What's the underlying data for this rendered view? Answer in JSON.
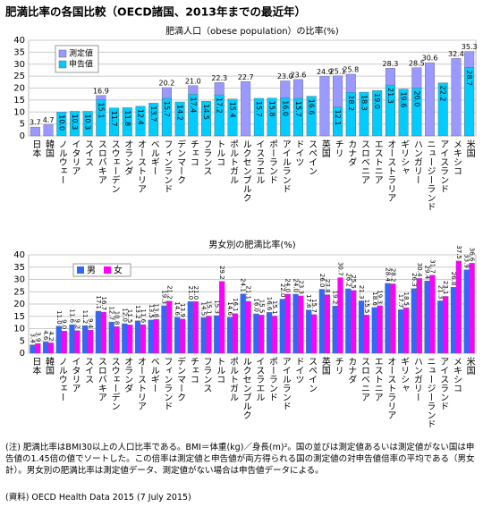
{
  "title": "肥満比率の各国比較（OECD諸国、2013年までの最近年）",
  "chart_data": [
    {
      "type": "bar",
      "bar_mode": "overlay",
      "title": "肥満人口（obese population）の比率(%)",
      "categories": [
        "日本",
        "韓国",
        "ノルウェー",
        "イタリア",
        "スイス",
        "スロバキア",
        "スウェーデン",
        "オランダ",
        "オーストリア",
        "ベルギー",
        "フィンランド",
        "デンマーク",
        "チェコ",
        "フランス",
        "トルコ",
        "ポルトガル",
        "ルクセンブルク",
        "イスラエル",
        "ポーランド",
        "アイルランド",
        "ドイツ",
        "スペイン",
        "英国",
        "チリ",
        "カナダ",
        "スロベニア",
        "エストニア",
        "オーストラリア",
        "ギリシャ",
        "ハンガリー",
        "ニュージーランド",
        "アイスランド",
        "メキシコ",
        "米国"
      ],
      "series": [
        {
          "name": "測定値",
          "color": "#9999ff",
          "values": [
            3.7,
            4.7,
            null,
            null,
            null,
            16.9,
            null,
            null,
            null,
            null,
            20.2,
            null,
            21.0,
            null,
            22.3,
            null,
            22.7,
            null,
            null,
            23.0,
            23.6,
            null,
            24.9,
            25.1,
            25.8,
            null,
            null,
            28.3,
            null,
            28.5,
            30.6,
            null,
            32.4,
            35.3
          ],
          "value_labels": [
            "3.7",
            "4.7",
            null,
            null,
            null,
            "16.9",
            null,
            null,
            null,
            null,
            "20.2",
            null,
            "21.0",
            null,
            "22.3",
            null,
            "22.7",
            null,
            null,
            "23.0",
            "23.6",
            null,
            "24.9",
            "25.1",
            "25.8",
            null,
            null,
            "28.3",
            null,
            "28.5",
            "30.6",
            null,
            "32.4",
            "35.3"
          ]
        },
        {
          "name": "申告値",
          "color": "#00ccff",
          "values": [
            null,
            null,
            10.0,
            10.3,
            10.3,
            15.1,
            11.7,
            11.8,
            12.4,
            13.7,
            15.7,
            14.2,
            17.4,
            14.5,
            17.2,
            15.4,
            null,
            15.7,
            15.8,
            16.0,
            15.7,
            16.6,
            null,
            12.1,
            18.2,
            18.3,
            19.0,
            21.3,
            19.6,
            20.0,
            null,
            22.2,
            null,
            28.7
          ],
          "value_labels": [
            null,
            null,
            "10.0",
            "10.3",
            "10.3",
            "15.1",
            "11.7",
            "11.8",
            "12.4",
            "13.7",
            "15.7",
            "14.2",
            "17.4",
            "14.5",
            "17.2",
            "15.4",
            null,
            "15.7",
            "15.8",
            "16.0",
            "15.7",
            "16.6",
            null,
            "12.1",
            "18.2",
            "18.3",
            "19.0",
            "21.3",
            "19.6",
            "20.0",
            null,
            "22.2",
            null,
            "28.7"
          ]
        }
      ],
      "ylim": [
        0,
        40
      ],
      "yticks": [
        0,
        5,
        10,
        15,
        20,
        25,
        30,
        35,
        40
      ],
      "grid": true,
      "legend": "upper left"
    },
    {
      "type": "bar",
      "bar_mode": "grouped",
      "title": "男女別の肥満比率(%)",
      "categories": [
        "日本",
        "韓国",
        "ノルウェー",
        "イタリア",
        "スイス",
        "スロバキア",
        "スウェーデン",
        "オランダ",
        "オーストリア",
        "ベルギー",
        "フィンランド",
        "デンマーク",
        "チェコ",
        "フランス",
        "トルコ",
        "ポルトガル",
        "ルクセンブルク",
        "イスラエル",
        "ポーランド",
        "アイルランド",
        "ドイツ",
        "スペイン",
        "英国",
        "チリ",
        "カナダ",
        "スロベニア",
        "エストニア",
        "オーストラリア",
        "ギリシャ",
        "ハンガリー",
        "ニュージーランド",
        "アイスランド",
        "メキシコ",
        "米国"
      ],
      "series": [
        {
          "name": "男",
          "color": "#3366ff",
          "values": [
            3.4,
            4.6,
            11.0,
            11.6,
            11.2,
            17.1,
            12.7,
            12.0,
            13.2,
            13.5,
            19.3,
            14.6,
            21.0,
            14.5,
            15.3,
            14.6,
            24.1,
            16.0,
            16.6,
            22.0,
            24.0,
            17.6,
            26.0,
            19.2,
            26.2,
            21.3,
            18.6,
            28.4,
            17.7,
            26.3,
            29.4,
            21.3,
            26.8,
            33.9
          ],
          "value_labels": [
            "3.4",
            "4.6",
            "11.0",
            "11.6",
            "11.2",
            "17.1",
            "12.7",
            "12.0",
            "13.2",
            "13.5",
            "19.3",
            "14.6",
            "21.0",
            "14.5",
            "15.3",
            "14.6",
            "24.1",
            "16.0",
            "16.6",
            "22.0",
            "24.0",
            "17.6",
            "26.0",
            "19.2",
            "26.2",
            "21.3",
            "18.6",
            "28.4",
            "17.7",
            "26.3",
            "29.4",
            "21.3",
            "26.8",
            "33.9"
          ]
        },
        {
          "name": "女",
          "color": "#ff00ff",
          "values": [
            3.9,
            4.2,
            9.0,
            9.2,
            9.4,
            16.7,
            10.8,
            11.5,
            11.6,
            13.8,
            21.2,
            13.9,
            21.0,
            15.1,
            29.2,
            16.1,
            21.1,
            15.5,
            15.1,
            24.0,
            23.3,
            15.7,
            23.8,
            30.7,
            25.5,
            15.5,
            19.3,
            28.2,
            18.5,
            30.4,
            31.7,
            23.1,
            37.5,
            36.6
          ],
          "value_labels": [
            "3.9",
            "4.2",
            "9.0",
            "9.2",
            "9.4",
            "16.7",
            "10.8",
            "11.5",
            "11.6",
            "13.8",
            "21.2",
            "13.9",
            "21.0",
            "15.1",
            "29.2",
            "16.1",
            "21.1",
            "15.5",
            "15.1",
            "24.0",
            "23.3",
            "15.7",
            "23.8",
            "30.7",
            "25.5",
            "15.5",
            "19.3",
            "28.2",
            "18.5",
            "30.4",
            "31.7",
            "23.1",
            "37.5",
            "36.6"
          ]
        }
      ],
      "ylim": [
        0,
        40
      ],
      "yticks": [
        0,
        5,
        10,
        15,
        20,
        25,
        30,
        35,
        40
      ],
      "grid": true,
      "legend": "upper left"
    }
  ],
  "note": "(注) 肥満比率はBMI30以上の人口比率である。BMI＝体重(kg)／身長(m)²。国の並びは測定値あるいは測定値がない国は申告値の1.45倍の値でソートした。この倍率は測定値と申告値が両方得られる国の測定値の対申告値倍率の平均である（男女計）。男女別の肥満比率は測定値データ、測定値がない場合は申告値データによる。",
  "source": "(資料) OECD Health Data 2015 (7 July 2015)"
}
